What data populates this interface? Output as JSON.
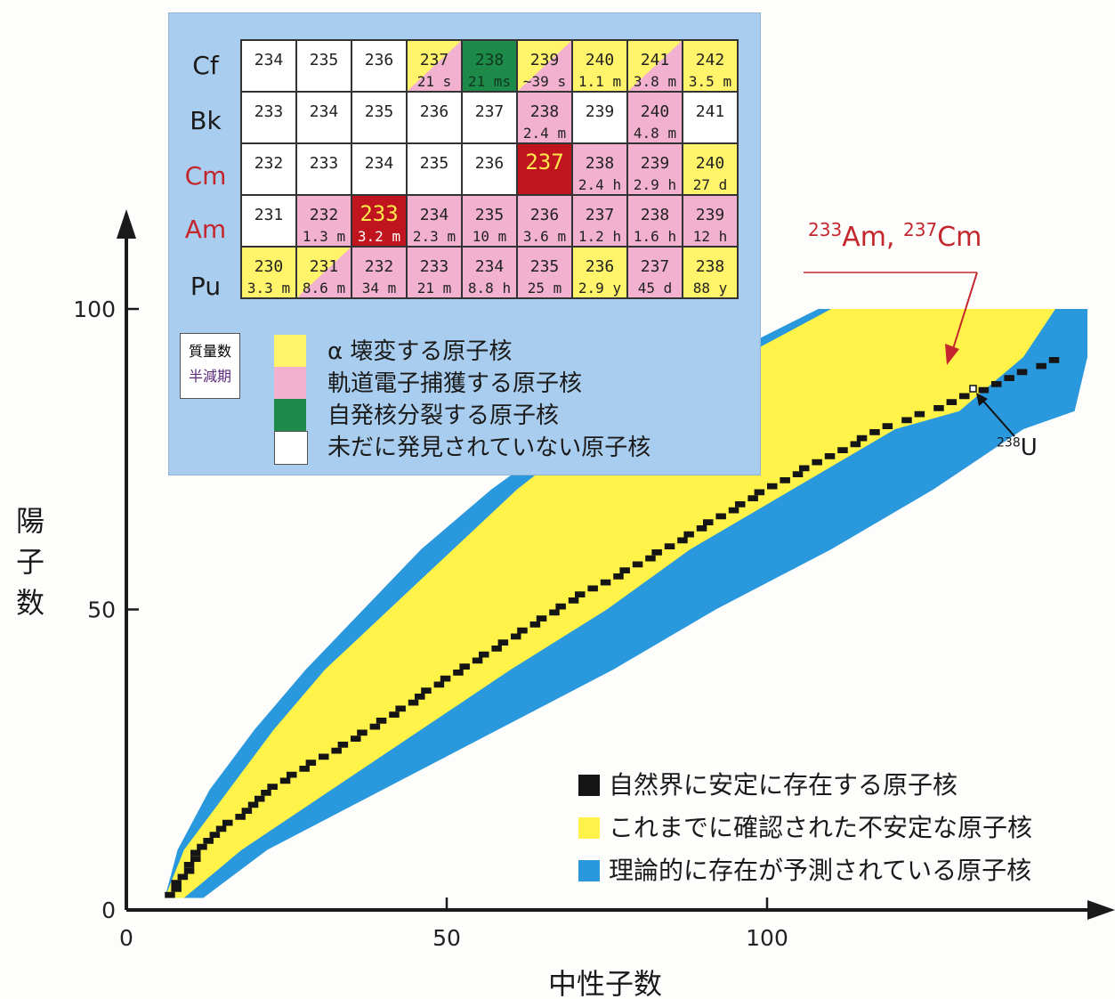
{
  "chart_data": {
    "type": "heatmap",
    "title": "",
    "xlabel": "中性子数",
    "ylabel": "陽子数",
    "xlim": [
      0,
      150
    ],
    "ylim": [
      0,
      110
    ],
    "x_ticks": [
      "0",
      "50",
      "100"
    ],
    "y_ticks": [
      "0",
      "50",
      "100"
    ],
    "grid": false,
    "legend_position": "bottom-right",
    "legend": [
      {
        "label": "自然界に安定に存在する原子核",
        "color": "#151515"
      },
      {
        "label": "これまでに確認された不安定な原子核",
        "color": "#fff34a"
      },
      {
        "label": "理論的に存在が予測されている原子核",
        "color": "#2a98dd"
      }
    ],
    "region_bounds": {
      "description_cols": [
        "Z",
        "stable_N_center",
        "yellow_N_min",
        "yellow_N_max",
        "blue_N_min",
        "blue_N_max"
      ],
      "rows": [
        [
          2,
          6,
          6,
          9,
          6,
          12
        ],
        [
          10,
          11,
          9,
          18,
          8,
          22
        ],
        [
          20,
          22,
          16,
          32,
          13,
          40
        ],
        [
          30,
          38,
          23,
          46,
          20,
          58
        ],
        [
          40,
          52,
          31,
          60,
          28,
          76
        ],
        [
          50,
          67,
          41,
          75,
          37,
          92
        ],
        [
          60,
          84,
          51,
          88,
          46,
          110
        ],
        [
          70,
          100,
          61,
          104,
          57,
          126
        ],
        [
          80,
          118,
          73,
          120,
          70,
          140
        ],
        [
          83,
          126,
          80,
          130,
          78,
          148
        ],
        [
          92,
          146,
          96,
          140,
          93,
          150
        ],
        [
          100,
          0,
          110,
          145,
          108,
          150
        ]
      ]
    },
    "annotations": {
      "highlight": {
        "mass_a": "233",
        "sym_a": "Am,",
        "mass_b": "237",
        "sym_b": "Cm"
      },
      "reference": {
        "mass": "238",
        "sym": "U"
      }
    }
  },
  "inset": {
    "elements": [
      "Cf",
      "Bk",
      "Cm",
      "Am",
      "Pu"
    ],
    "rows": [
      [
        [
          "234",
          "",
          "white"
        ],
        [
          "235",
          "",
          "white"
        ],
        [
          "236",
          "",
          "white"
        ],
        [
          "237",
          "21 s",
          "yp"
        ],
        [
          "238",
          "21 ms",
          "green"
        ],
        [
          "239",
          "~39 s",
          "yp"
        ],
        [
          "240",
          "1.1 m",
          "yellow"
        ],
        [
          "241",
          "3.8 m",
          "yp"
        ],
        [
          "242",
          "3.5 m",
          "yellow"
        ]
      ],
      [
        [
          "233",
          "",
          "white"
        ],
        [
          "234",
          "",
          "white"
        ],
        [
          "235",
          "",
          "white"
        ],
        [
          "236",
          "",
          "white"
        ],
        [
          "237",
          "",
          "white"
        ],
        [
          "238",
          "2.4 m",
          "pink"
        ],
        [
          "239",
          "",
          "white"
        ],
        [
          "240",
          "4.8 m",
          "pink"
        ],
        [
          "241",
          "",
          "white"
        ]
      ],
      [
        [
          "232",
          "",
          "white"
        ],
        [
          "233",
          "",
          "white"
        ],
        [
          "234",
          "",
          "white"
        ],
        [
          "235",
          "",
          "white"
        ],
        [
          "236",
          "",
          "white"
        ],
        [
          "237",
          "",
          "red"
        ],
        [
          "238",
          "2.4 h",
          "pink"
        ],
        [
          "239",
          "2.9 h",
          "pink"
        ],
        [
          "240",
          "27 d",
          "yellow"
        ]
      ],
      [
        [
          "231",
          "",
          "white"
        ],
        [
          "232",
          "1.3 m",
          "pink"
        ],
        [
          "233",
          "3.2 m",
          "red"
        ],
        [
          "234",
          "2.3 m",
          "pink"
        ],
        [
          "235",
          "10 m",
          "pink"
        ],
        [
          "236",
          "3.6 m",
          "pink"
        ],
        [
          "237",
          "1.2 h",
          "pink"
        ],
        [
          "238",
          "1.6 h",
          "pink"
        ],
        [
          "239",
          "12 h",
          "pink"
        ]
      ],
      [
        [
          "230",
          "3.3 m",
          "yellow"
        ],
        [
          "231",
          "8.6 m",
          "yp"
        ],
        [
          "232",
          "34 m",
          "pink"
        ],
        [
          "233",
          "21 m",
          "pink"
        ],
        [
          "234",
          "8.8 h",
          "pink"
        ],
        [
          "235",
          "25 m",
          "pink"
        ],
        [
          "236",
          "2.9 y",
          "yellow"
        ],
        [
          "237",
          "45 d",
          "pink"
        ],
        [
          "238",
          "88 y",
          "yellow"
        ]
      ]
    ],
    "key": {
      "mass": "質量数",
      "half_life": "半減期"
    },
    "legend": [
      {
        "label": "α 壊変する原子核",
        "color": "#fff46a"
      },
      {
        "label": "軌道電子捕獲する原子核",
        "color": "#f2b2cf"
      },
      {
        "label": "自発核分裂する原子核",
        "color": "#1d8a4a"
      },
      {
        "label": "未だに発見されていない原子核",
        "color": "#ffffff"
      }
    ]
  }
}
